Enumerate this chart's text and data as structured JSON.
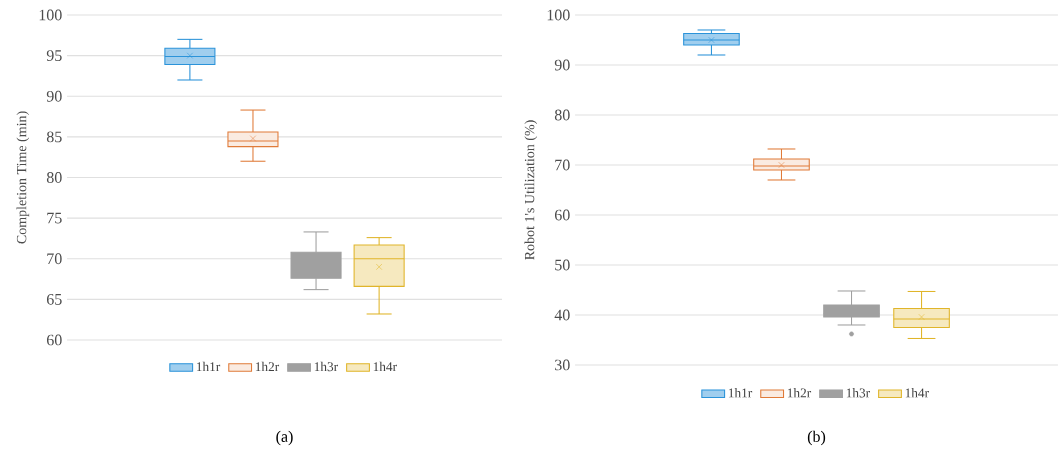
{
  "chart_data": [
    {
      "type": "box",
      "ylabel": "Completion Time (min)",
      "categories": [
        null
      ],
      "ylim": [
        60,
        100
      ],
      "yticks": [
        60,
        65,
        70,
        75,
        80,
        85,
        90,
        95,
        100
      ],
      "grid": "y",
      "legend": "bottom",
      "marker": "cross",
      "annotations": [
        "(a)"
      ],
      "series": [
        {
          "name": "1h1r",
          "color": "#2b93d9",
          "boxes": [
            {
              "low": 92,
              "q1": 93.9,
              "median": 94.9,
              "q3": 95.9,
              "high": 97,
              "mean": 95
            }
          ]
        },
        {
          "name": "1h2r",
          "color": "#e07b39",
          "boxes": [
            {
              "low": 82,
              "q1": 83.8,
              "median": 84.5,
              "q3": 85.6,
              "high": 88.3,
              "mean": 84.8
            }
          ]
        },
        {
          "name": "1h3r",
          "color": "#a0a0a0",
          "boxes": [
            {
              "low": 66.2,
              "q1": 67.6,
              "median": 69.2,
              "q3": 70.8,
              "high": 73.3,
              "mean": 69.4
            }
          ]
        },
        {
          "name": "1h4r",
          "color": "#e0b52a",
          "boxes": [
            {
              "low": 63.2,
              "q1": 66.6,
              "median": 70,
              "q3": 71.7,
              "high": 72.6,
              "mean": 69
            }
          ]
        }
      ]
    },
    {
      "type": "box",
      "ylabel": "Robot 1's Utilization (%)",
      "categories": [
        null
      ],
      "ylim": [
        30,
        100
      ],
      "yticks": [
        30,
        40,
        50,
        60,
        70,
        80,
        90,
        100
      ],
      "grid": "y",
      "legend": "bottom",
      "marker": "cross",
      "annotations": [
        "(b)"
      ],
      "series": [
        {
          "name": "1h1r",
          "color": "#2b93d9",
          "boxes": [
            {
              "low": 92,
              "q1": 94,
              "median": 95,
              "q3": 96.3,
              "high": 97,
              "mean": 95
            }
          ]
        },
        {
          "name": "1h2r",
          "color": "#e07b39",
          "boxes": [
            {
              "low": 67,
              "q1": 69,
              "median": 69.8,
              "q3": 71.2,
              "high": 73.2,
              "mean": 70
            }
          ]
        },
        {
          "name": "1h3r",
          "color": "#a0a0a0",
          "boxes": [
            {
              "low": 38,
              "q1": 39.6,
              "median": 40.3,
              "q3": 42,
              "high": 44.8,
              "mean": 40.7,
              "outliers": [
                36.2
              ]
            }
          ]
        },
        {
          "name": "1h4r",
          "color": "#e0b52a",
          "boxes": [
            {
              "low": 35.3,
              "q1": 37.5,
              "median": 39.2,
              "q3": 41.3,
              "high": 44.7,
              "mean": 39.6
            }
          ]
        }
      ]
    }
  ]
}
